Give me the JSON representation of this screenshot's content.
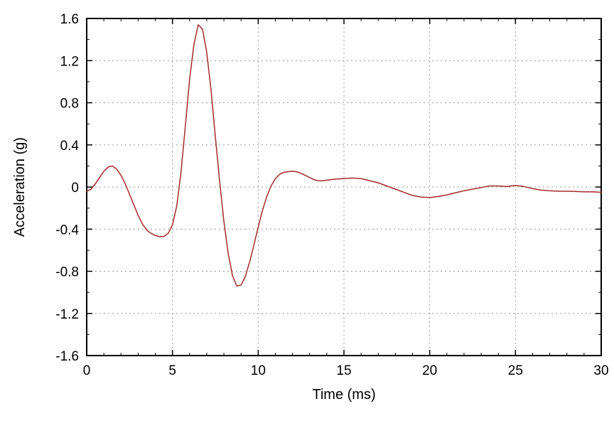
{
  "figure": {
    "background": "#ffffff"
  },
  "chart_data": {
    "type": "line",
    "title": "",
    "xlabel": "Time (ms)",
    "ylabel": "Acceleration (g)",
    "xlim": [
      0,
      30
    ],
    "ylim": [
      -1.6,
      1.6
    ],
    "xticks": [
      0,
      5,
      10,
      15,
      20,
      25,
      30
    ],
    "xtick_labels": [
      "0",
      "5",
      "10",
      "15",
      "20",
      "25",
      "30"
    ],
    "yticks": [
      -1.6,
      -1.2,
      -0.8,
      -0.4,
      0,
      0.4,
      0.8,
      1.2,
      1.6
    ],
    "ytick_labels": [
      "-1.6",
      "-1.2",
      "-0.8",
      "-0.4",
      "0",
      "0.4",
      "0.8",
      "1.2",
      "1.6"
    ],
    "x_minor_step": 1,
    "y_minor_step": 0.2,
    "grid": {
      "show": true,
      "color": "#999999",
      "dash": "2,4"
    },
    "line": {
      "color": "#a52a2a",
      "width": 1.5
    },
    "legend": "none",
    "series": [
      {
        "name": "acceleration",
        "x": [
          0,
          0.25,
          0.5,
          0.75,
          1,
          1.25,
          1.5,
          1.75,
          2,
          2.25,
          2.5,
          2.75,
          3,
          3.25,
          3.5,
          3.75,
          4,
          4.25,
          4.5,
          4.75,
          5,
          5.25,
          5.5,
          5.75,
          6,
          6.25,
          6.5,
          6.75,
          7,
          7.25,
          7.5,
          7.75,
          8,
          8.25,
          8.5,
          8.75,
          9,
          9.25,
          9.5,
          9.75,
          10,
          10.25,
          10.5,
          10.75,
          11,
          11.25,
          11.5,
          11.75,
          12,
          12.25,
          12.5,
          12.75,
          13,
          13.25,
          13.5,
          13.75,
          14,
          14.5,
          15,
          15.5,
          16,
          16.5,
          17,
          17.5,
          18,
          18.5,
          19,
          19.5,
          20,
          20.5,
          21,
          21.5,
          22,
          22.5,
          23,
          23.5,
          24,
          24.5,
          25,
          25.5,
          26,
          26.5,
          27,
          27.5,
          28,
          28.5,
          29,
          29.5,
          30
        ],
        "y": [
          -0.04,
          -0.02,
          0.03,
          0.09,
          0.15,
          0.19,
          0.2,
          0.17,
          0.11,
          0.03,
          -0.07,
          -0.17,
          -0.27,
          -0.35,
          -0.41,
          -0.44,
          -0.46,
          -0.47,
          -0.47,
          -0.44,
          -0.36,
          -0.18,
          0.14,
          0.58,
          1.02,
          1.35,
          1.54,
          1.5,
          1.28,
          0.92,
          0.48,
          0.06,
          -0.33,
          -0.63,
          -0.84,
          -0.94,
          -0.93,
          -0.85,
          -0.71,
          -0.55,
          -0.38,
          -0.22,
          -0.09,
          0.01,
          0.08,
          0.12,
          0.14,
          0.145,
          0.15,
          0.145,
          0.13,
          0.11,
          0.09,
          0.07,
          0.06,
          0.06,
          0.065,
          0.075,
          0.08,
          0.085,
          0.08,
          0.06,
          0.04,
          0.01,
          -0.02,
          -0.05,
          -0.08,
          -0.095,
          -0.1,
          -0.09,
          -0.075,
          -0.055,
          -0.035,
          -0.02,
          -0.005,
          0.01,
          0.01,
          0.005,
          0.015,
          0.005,
          -0.015,
          -0.03,
          -0.035,
          -0.04,
          -0.04,
          -0.042,
          -0.045,
          -0.045,
          -0.05
        ]
      }
    ]
  }
}
